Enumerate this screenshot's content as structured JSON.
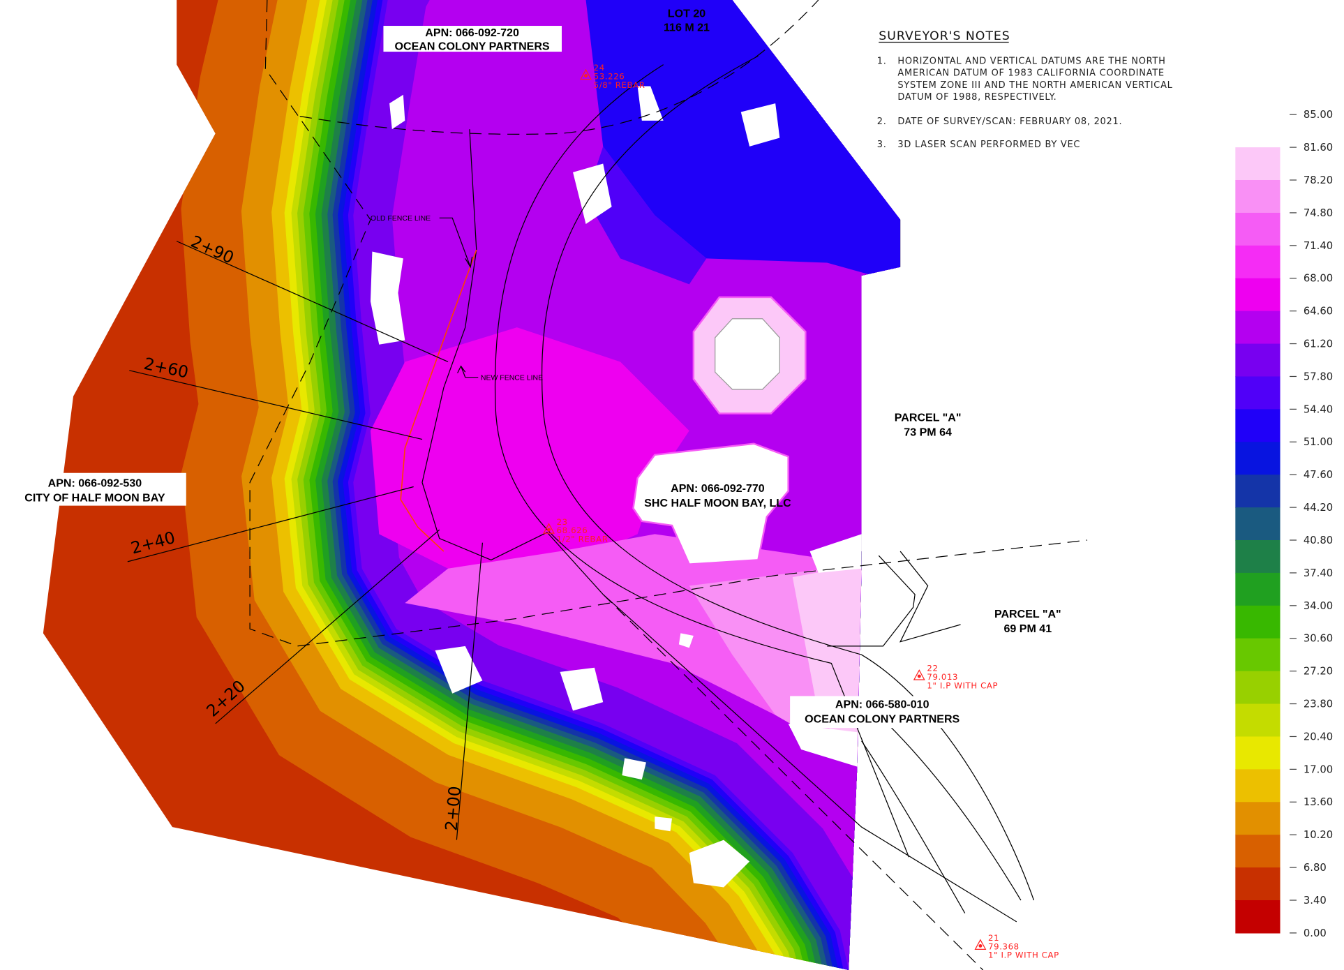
{
  "notes": {
    "title": "SURVEYOR'S NOTES",
    "items": [
      {
        "num": "1.",
        "lines": [
          "HORIZONTAL AND VERTICAL DATUMS ARE THE NORTH",
          "AMERICAN DATUM OF 1983 CALIFORNIA COORDINATE",
          "SYSTEM ZONE III AND THE NORTH AMERICAN VERTICAL",
          "DATUM OF 1988, RESPECTIVELY."
        ]
      },
      {
        "num": "2.",
        "lines": [
          "DATE OF SURVEY/SCAN: FEBRUARY 08, 2021."
        ]
      },
      {
        "num": "3.",
        "lines": [
          "3D LASER SCAN PERFORMED BY VEC"
        ]
      }
    ]
  },
  "parcels": [
    {
      "line1": "APN: 066-092-720",
      "line2": "OCEAN COLONY PARTNERS"
    },
    {
      "line1": "LOT 20",
      "line2": "116 M 21"
    },
    {
      "line1": "APN: 066-092-530",
      "line2": "CITY OF HALF MOON BAY"
    },
    {
      "line1": "PARCEL \"A\"",
      "line2": "73 PM 64"
    },
    {
      "line1": "APN: 066-092-770",
      "line2": "SHC HALF MOON BAY, LLC"
    },
    {
      "line1": "PARCEL \"A\"",
      "line2": "69 PM 41"
    },
    {
      "line1": "APN: 066-580-010",
      "line2": "OCEAN COLONY PARTNERS"
    }
  ],
  "fence_labels": {
    "old": "OLD FENCE LINE",
    "new": "NEW FENCE LINE"
  },
  "stations": [
    "2+90",
    "2+60",
    "2+40",
    "2+20",
    "2+00"
  ],
  "control_points": [
    {
      "id": "24",
      "elev": "53.226",
      "desc": "5/8\" REBAR"
    },
    {
      "id": "23",
      "elev": "68.626",
      "desc": "1/2\" REBAR"
    },
    {
      "id": "22",
      "elev": "79.013",
      "desc": "1\" I.P WITH CAP"
    },
    {
      "id": "21",
      "elev": "79.368",
      "desc": "1\" I.P WITH CAP"
    }
  ],
  "colors": {
    "control_point": "#ff2020",
    "new_fence": "#ff4000",
    "nodata": "#ffffff"
  },
  "legend": {
    "ticks": [
      "85.00",
      "81.60",
      "78.20",
      "74.80",
      "71.40",
      "68.00",
      "64.60",
      "61.20",
      "57.80",
      "54.40",
      "51.00",
      "47.60",
      "44.20",
      "40.80",
      "37.40",
      "34.00",
      "30.60",
      "27.20",
      "23.80",
      "20.40",
      "17.00",
      "13.60",
      "10.20",
      "6.80",
      "3.40",
      "0.00"
    ],
    "bands": [
      {
        "from": 78.2,
        "to": 81.6,
        "color": "#fcc8f8"
      },
      {
        "from": 74.8,
        "to": 78.2,
        "color": "#f990f5"
      },
      {
        "from": 71.4,
        "to": 74.8,
        "color": "#f55cf5"
      },
      {
        "from": 68.0,
        "to": 71.4,
        "color": "#f52cf5"
      },
      {
        "from": 64.6,
        "to": 68.0,
        "color": "#ee00f0"
      },
      {
        "from": 61.2,
        "to": 64.6,
        "color": "#b400f0"
      },
      {
        "from": 57.8,
        "to": 61.2,
        "color": "#7800f0"
      },
      {
        "from": 54.4,
        "to": 57.8,
        "color": "#5000f8"
      },
      {
        "from": 51.0,
        "to": 54.4,
        "color": "#2000f8"
      },
      {
        "from": 47.6,
        "to": 51.0,
        "color": "#0814e0"
      },
      {
        "from": 44.2,
        "to": 47.6,
        "color": "#1434a8"
      },
      {
        "from": 40.8,
        "to": 44.2,
        "color": "#1a5a80"
      },
      {
        "from": 37.4,
        "to": 40.8,
        "color": "#1e8048"
      },
      {
        "from": 34.0,
        "to": 37.4,
        "color": "#20a020"
      },
      {
        "from": 30.6,
        "to": 34.0,
        "color": "#38b800"
      },
      {
        "from": 27.2,
        "to": 30.6,
        "color": "#68c800"
      },
      {
        "from": 23.8,
        "to": 27.2,
        "color": "#98d000"
      },
      {
        "from": 20.4,
        "to": 23.8,
        "color": "#c4dc00"
      },
      {
        "from": 17.0,
        "to": 20.4,
        "color": "#e8e800"
      },
      {
        "from": 13.6,
        "to": 17.0,
        "color": "#ecc000"
      },
      {
        "from": 10.2,
        "to": 13.6,
        "color": "#e29000"
      },
      {
        "from": 6.8,
        "to": 10.2,
        "color": "#d86000"
      },
      {
        "from": 3.4,
        "to": 6.8,
        "color": "#c83000"
      },
      {
        "from": 0.0,
        "to": 3.4,
        "color": "#c40000"
      }
    ]
  }
}
